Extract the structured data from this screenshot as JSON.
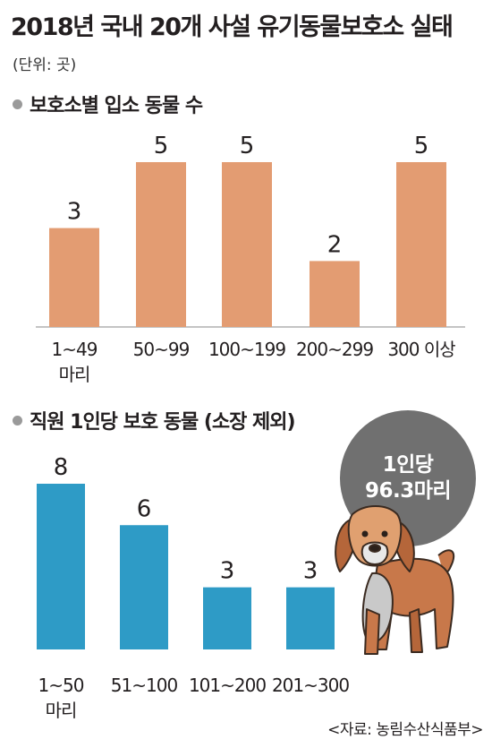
{
  "title": "2018년 국내 20개 사설 유기동물보호소 실태",
  "unit": "(단위: 곳)",
  "source": "<자료: 농림수산식품부>",
  "badge": {
    "line1": "1인당",
    "line2": "96.3마리"
  },
  "chart_data": [
    {
      "type": "bar",
      "title": "보호소별 입소 동물 수",
      "categories": [
        "1~49\n마리",
        "50~99",
        "100~199",
        "200~299",
        "300 이상"
      ],
      "values": [
        3,
        5,
        5,
        2,
        5
      ],
      "ylim": [
        0,
        5
      ],
      "color": "#e39c72"
    },
    {
      "type": "bar",
      "title": "직원 1인당 보호 동물 (소장 제외)",
      "categories": [
        "1~50\n마리",
        "51~100",
        "101~200",
        "201~300"
      ],
      "values": [
        8,
        6,
        3,
        3
      ],
      "ylim": [
        0,
        8
      ],
      "color": "#2e9bc6"
    }
  ]
}
